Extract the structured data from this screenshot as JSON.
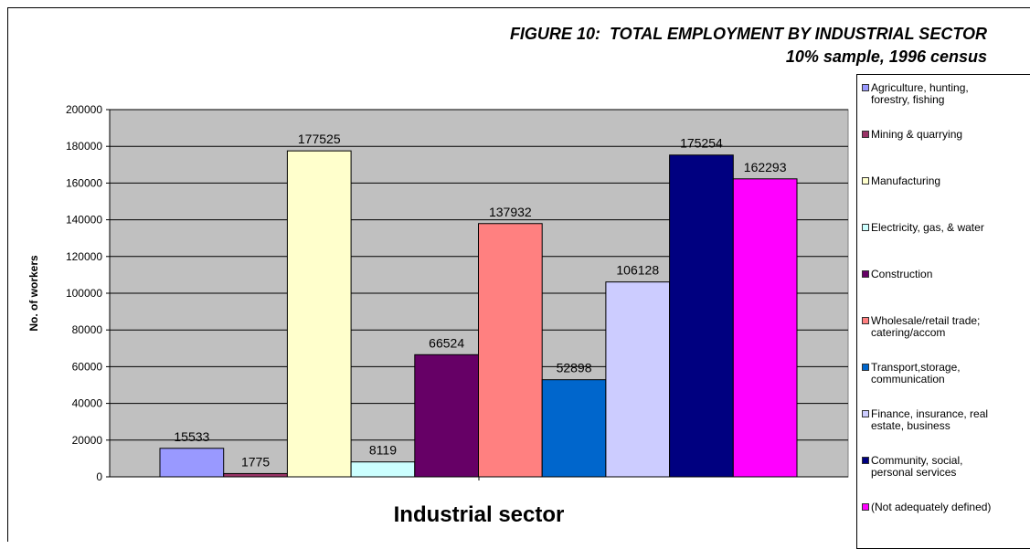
{
  "chart_data": {
    "type": "bar",
    "title": "FIGURE 10:  TOTAL EMPLOYMENT BY INDUSTRIAL SECTOR",
    "subtitle": "10% sample, 1996 census",
    "xlabel": "Industrial sector",
    "ylabel": "No. of workers",
    "ylim": [
      0,
      200000
    ],
    "yticks": [
      "200000",
      "180000",
      "160000",
      "140000",
      "120000",
      "100000",
      "80000",
      "60000",
      "40000",
      "20000",
      "0"
    ],
    "grid": true,
    "legend_position": "right",
    "series": [
      {
        "name": "Agriculture, hunting,\nforestry, fishing",
        "value": 15533,
        "color": "#9999ff"
      },
      {
        "name": "Mining & quarrying",
        "value": 1775,
        "color": "#993366"
      },
      {
        "name": "Manufacturing",
        "value": 177525,
        "color": "#ffffcc"
      },
      {
        "name": "Electricity, gas, & water",
        "value": 8119,
        "color": "#ccffff"
      },
      {
        "name": "Construction",
        "value": 66524,
        "color": "#660066"
      },
      {
        "name": "Wholesale/retail trade;\ncatering/accom",
        "value": 137932,
        "color": "#ff8080"
      },
      {
        "name": "Transport,storage,\ncommunication",
        "value": 52898,
        "color": "#0066cc"
      },
      {
        "name": "Finance, insurance, real\nestate, business",
        "value": 106128,
        "color": "#ccccff"
      },
      {
        "name": "Community, social,\npersonal services",
        "value": 175254,
        "color": "#000080"
      },
      {
        "name": "(Not adequately defined)",
        "value": 162293,
        "color": "#ff00ff"
      }
    ],
    "plot_background": "#c0c0c0"
  }
}
